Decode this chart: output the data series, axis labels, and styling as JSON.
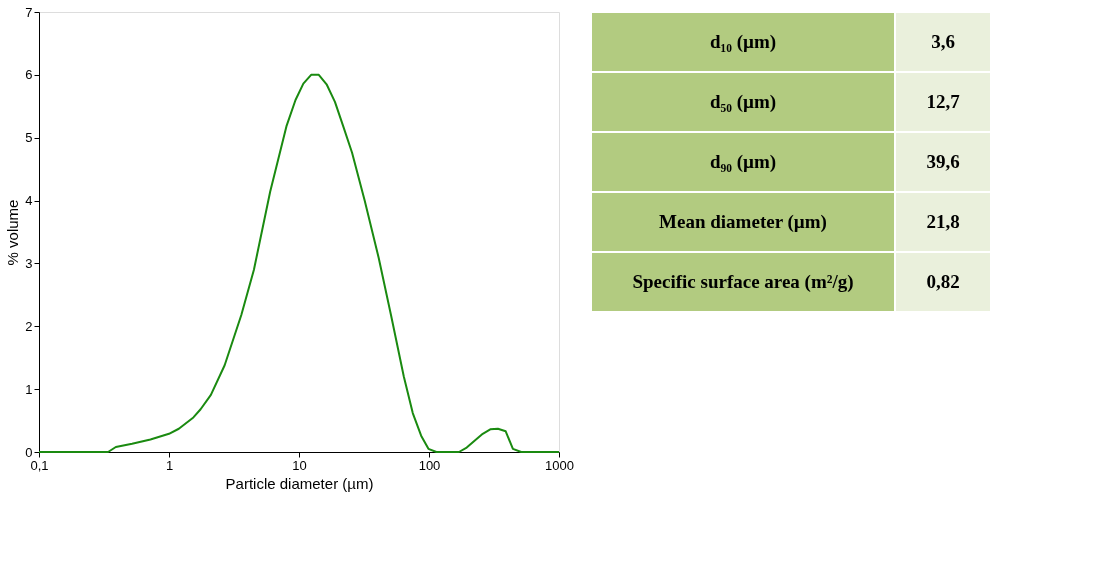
{
  "chart_data": [
    {
      "type": "line",
      "xlabel": "Particle diameter (µm)",
      "ylabel": "% volume",
      "log": "x",
      "grid": false,
      "marker": "none",
      "line_style": "solid",
      "xlim": [
        0.1,
        1000
      ],
      "xticks": [
        {
          "value": 0.1,
          "label": "0,1"
        },
        1,
        10,
        100,
        1000
      ],
      "ylim": [
        0,
        7
      ],
      "yticks": [
        0,
        1,
        2,
        3,
        4,
        5,
        6,
        7
      ],
      "series": [
        {
          "color": "#1a8a10",
          "x": [
            0.1,
            0.34,
            0.39,
            0.52,
            0.72,
            1.0,
            1.19,
            1.54,
            1.75,
            2.1,
            2.68,
            3.6,
            4.5,
            6.0,
            8.0,
            9.4,
            10.8,
            12.4,
            14.2,
            16.3,
            18.9,
            21.9,
            25.6,
            32,
            41,
            51,
            64,
            75,
            87,
            99,
            114,
            170,
            195,
            259,
            296,
            339,
            389,
            442,
            512,
            1000
          ],
          "values": [
            0,
            0,
            0.08,
            0.13,
            0.2,
            0.29,
            0.37,
            0.55,
            0.68,
            0.91,
            1.38,
            2.18,
            2.9,
            4.14,
            5.18,
            5.6,
            5.86,
            6.0,
            6.0,
            5.85,
            5.57,
            5.18,
            4.76,
            4.0,
            3.09,
            2.18,
            1.2,
            0.62,
            0.26,
            0.05,
            0,
            0,
            0.07,
            0.29,
            0.36,
            0.37,
            0.33,
            0.05,
            0,
            0
          ]
        }
      ]
    },
    {
      "type": "other",
      "colors": [
        "#b2cb80",
        "#eaf0dc"
      ],
      "annotations": [
        "d₁₀ (µm)",
        "3,6",
        "d₅₀ (µm)",
        "12,7",
        "d₉₀ (µm)",
        "39,6",
        "Mean diameter (µm)",
        "21,8",
        "Specific surface area (m²/g)",
        "0,82"
      ]
    }
  ]
}
